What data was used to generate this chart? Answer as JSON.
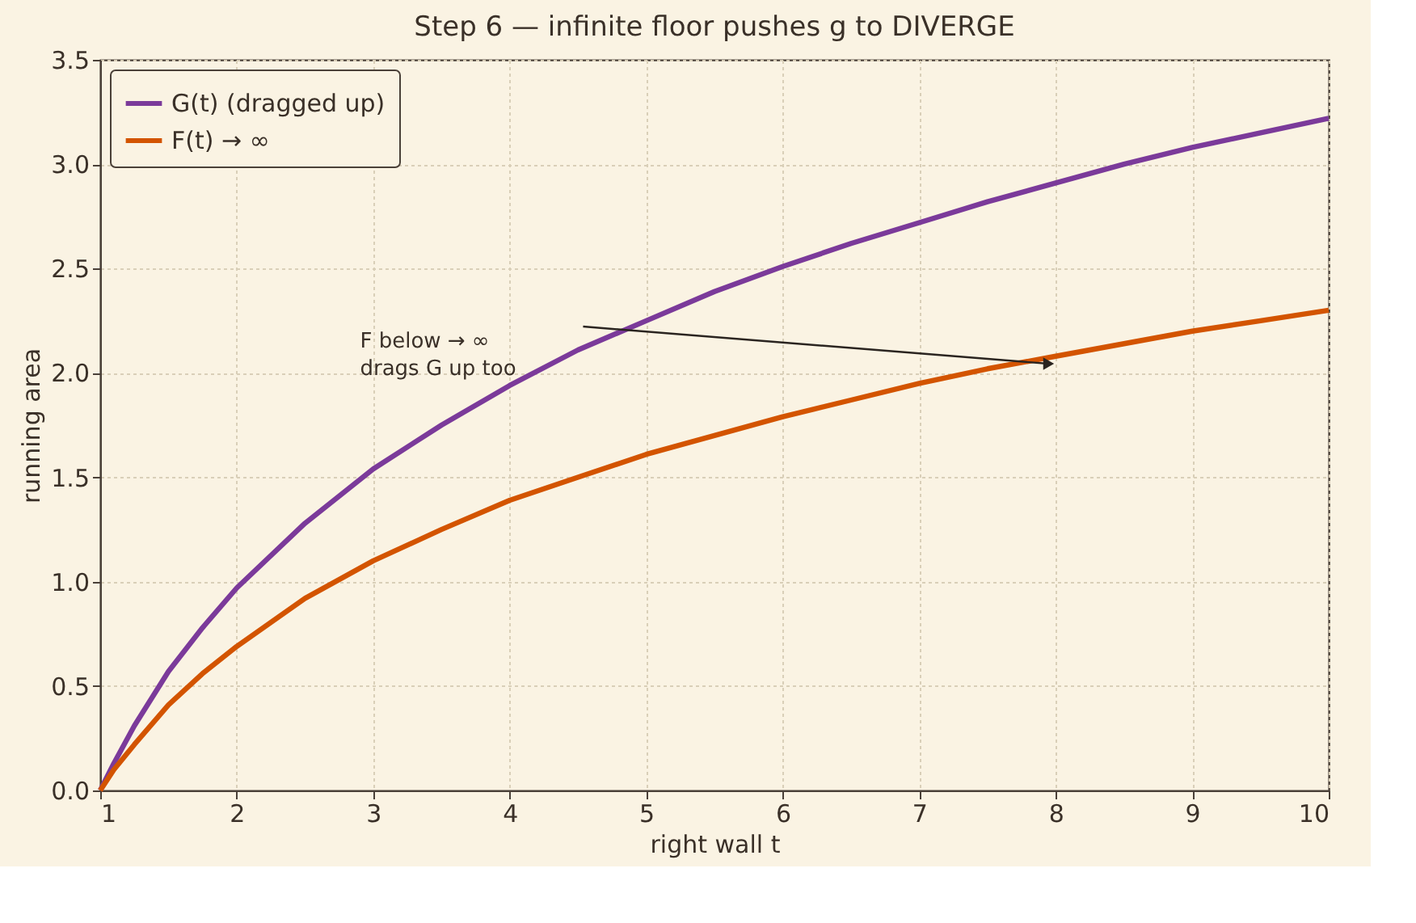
{
  "chart_data": {
    "type": "line",
    "title": "Step 6 — infinite floor pushes g to DIVERGE",
    "xlabel": "right wall t",
    "ylabel": "running area",
    "x": [
      1,
      1.1,
      1.25,
      1.5,
      1.75,
      2,
      2.5,
      3,
      3.5,
      4,
      4.5,
      5,
      5.5,
      6,
      6.5,
      7,
      7.5,
      8,
      8.5,
      9,
      9.5,
      10
    ],
    "series": [
      {
        "name": "G(t) (dragged up)",
        "color": "#7b3a9a",
        "values": [
          0,
          0.13,
          0.31,
          0.57,
          0.78,
          0.97,
          1.28,
          1.54,
          1.75,
          1.94,
          2.11,
          2.25,
          2.39,
          2.51,
          2.62,
          2.72,
          2.82,
          2.91,
          3.0,
          3.08,
          3.15,
          3.22
        ]
      },
      {
        "name": "F(t) → ∞",
        "color": "#d35400",
        "values": [
          0,
          0.1,
          0.22,
          0.41,
          0.56,
          0.69,
          0.92,
          1.1,
          1.25,
          1.39,
          1.5,
          1.61,
          1.7,
          1.79,
          1.87,
          1.95,
          2.02,
          2.08,
          2.14,
          2.2,
          2.25,
          2.3
        ]
      }
    ],
    "xlim": [
      1,
      10
    ],
    "xticks": [
      1,
      2,
      3,
      4,
      5,
      6,
      7,
      8,
      9,
      10
    ],
    "ylim": [
      0,
      3.5
    ],
    "yticks": [
      {
        "value": 0,
        "label": "0.0"
      },
      0.5,
      {
        "value": 1,
        "label": "1.0"
      },
      1.5,
      {
        "value": 2,
        "label": "2.0"
      },
      2.5,
      {
        "value": 3,
        "label": "3.0"
      },
      3.5
    ],
    "annotations": [
      "F below → ∞\ndrags G up too"
    ],
    "grid": true,
    "legend": "top left",
    "marker": "none",
    "line_style": "solid"
  }
}
